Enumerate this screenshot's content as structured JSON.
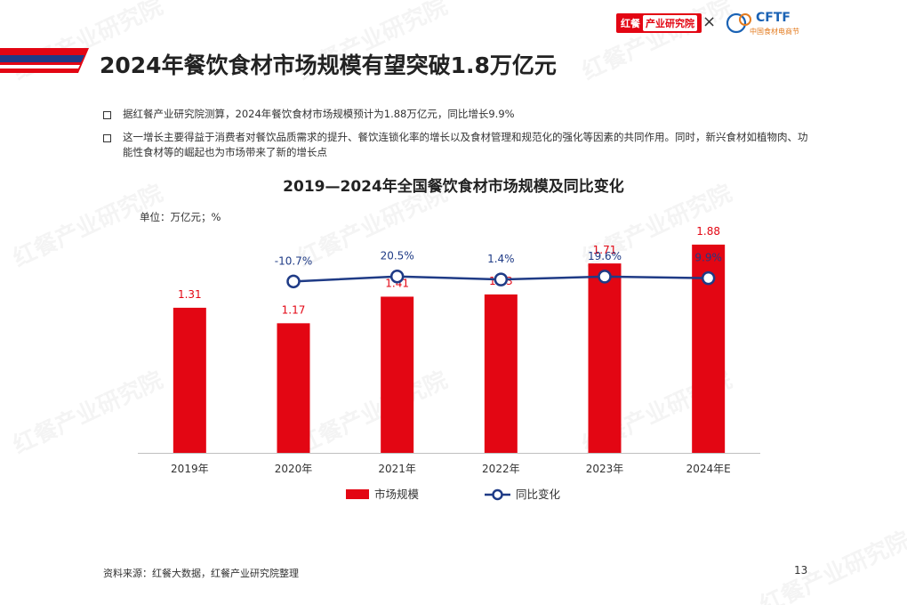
{
  "header": {
    "title": "2024年餐饮食材市场规模有望突破1.8万亿元",
    "brand_logo_main": "红餐",
    "brand_logo_sub": "产业研究院",
    "times_sign": "×",
    "partner_logo": "CFTF",
    "partner_logo_sub": "中国食材电商节"
  },
  "bullets": [
    "据红餐产业研究院测算，2024年餐饮食材市场规模预计为1.88万亿元，同比增长9.9%",
    "这一增长主要得益于消费者对餐饮品质需求的提升、餐饮连锁化率的增长以及食材管理和规范化的强化等因素的共同作用。同时，新兴食材如植物肉、功能性食材等的崛起也为市场带来了新的增长点"
  ],
  "unit": "单位：万亿元；%",
  "footer": {
    "source": "资料来源：红餐大数据，红餐产业研究院整理",
    "page": "13"
  },
  "watermark_text": "红餐产业研究院",
  "colors": {
    "bar": "#e30613",
    "line": "#1f3b86",
    "label_red": "#e30613",
    "label_blue": "#1f3b86"
  },
  "chart_data": {
    "type": "bar",
    "title": "2019—2024年全国餐饮食材市场规模及同比变化",
    "categories": [
      "2019年",
      "2020年",
      "2021年",
      "2022年",
      "2023年",
      "2024年E"
    ],
    "series": [
      {
        "name": "市场规模",
        "type": "bar",
        "values": [
          1.31,
          1.17,
          1.41,
          1.43,
          1.71,
          1.88
        ],
        "labels": [
          "1.31",
          "1.17",
          "1.41",
          "1.43",
          "1.71",
          "1.88"
        ]
      },
      {
        "name": "同比变化",
        "type": "line",
        "values": [
          null,
          -10.7,
          20.5,
          1.4,
          19.6,
          9.9
        ],
        "labels": [
          "",
          "-10.7%",
          "20.5%",
          "1.4%",
          "19.6%",
          "9.9%"
        ]
      }
    ],
    "legend": "bottom-center",
    "grid": false
  }
}
